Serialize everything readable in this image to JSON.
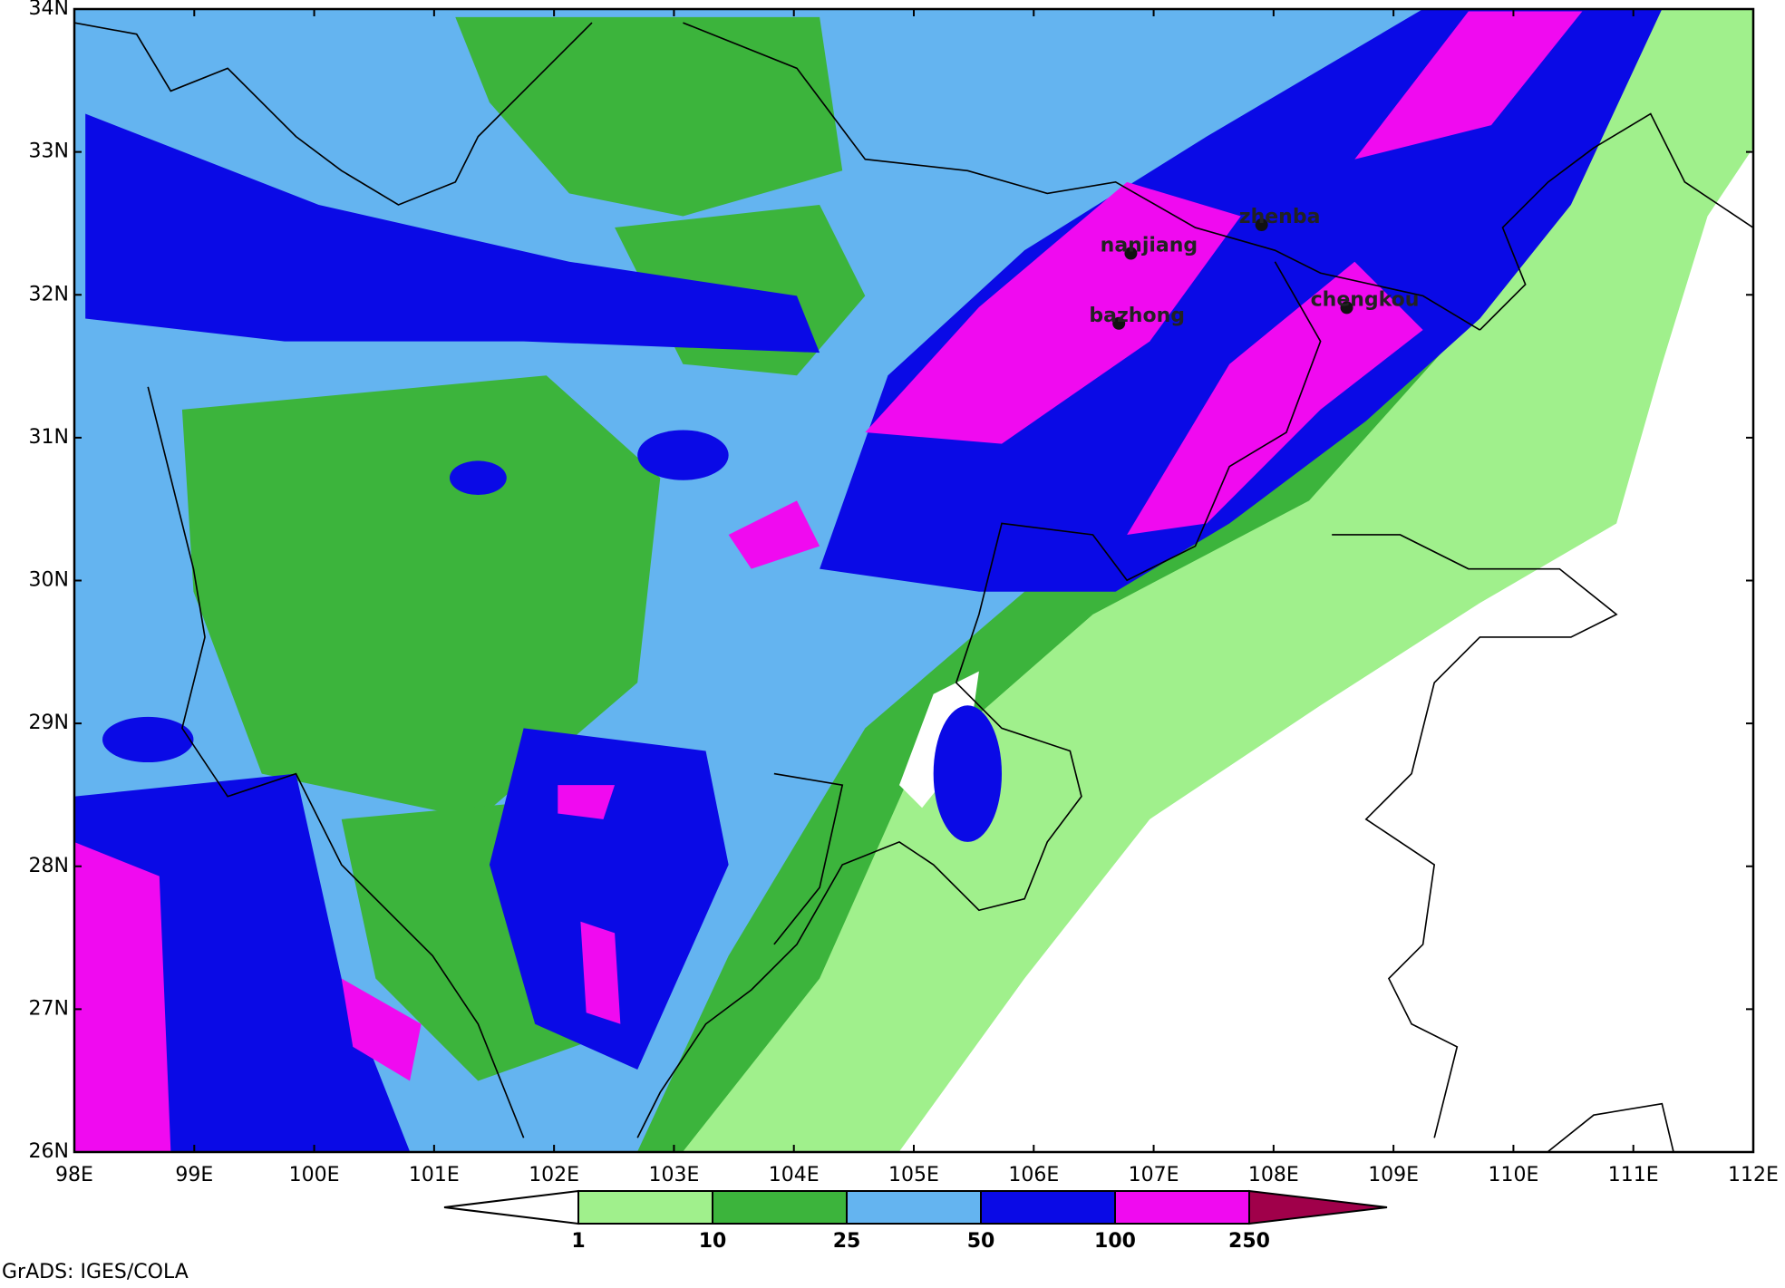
{
  "map": {
    "xticks": [
      {
        "value": 98,
        "label": "98E"
      },
      {
        "value": 99,
        "label": "99E"
      },
      {
        "value": 100,
        "label": "100E"
      },
      {
        "value": 101,
        "label": "101E"
      },
      {
        "value": 102,
        "label": "102E"
      },
      {
        "value": 103,
        "label": "103E"
      },
      {
        "value": 104,
        "label": "104E"
      },
      {
        "value": 105,
        "label": "105E"
      },
      {
        "value": 106,
        "label": "106E"
      },
      {
        "value": 107,
        "label": "107E"
      },
      {
        "value": 108,
        "label": "108E"
      },
      {
        "value": 109,
        "label": "109E"
      },
      {
        "value": 110,
        "label": "110E"
      },
      {
        "value": 111,
        "label": "111E"
      },
      {
        "value": 112,
        "label": "112E"
      }
    ],
    "yticks": [
      {
        "value": 26,
        "label": "26N"
      },
      {
        "value": 27,
        "label": "27N"
      },
      {
        "value": 28,
        "label": "28N"
      },
      {
        "value": 29,
        "label": "29N"
      },
      {
        "value": 30,
        "label": "30N"
      },
      {
        "value": 31,
        "label": "31N"
      },
      {
        "value": 32,
        "label": "32N"
      },
      {
        "value": 33,
        "label": "33N"
      },
      {
        "value": 34,
        "label": "34N"
      }
    ],
    "xlim": [
      98,
      112
    ],
    "ylim": [
      26,
      34
    ],
    "cities": [
      {
        "name": "zhenba",
        "lon": 107.9,
        "lat": 32.49
      },
      {
        "name": "nanjiang",
        "lon": 106.81,
        "lat": 32.29
      },
      {
        "name": "bazhong",
        "lon": 106.71,
        "lat": 31.8
      },
      {
        "name": "chengkou",
        "lon": 108.61,
        "lat": 31.91
      }
    ]
  },
  "colorbar": {
    "levels": [
      1,
      10,
      25,
      50,
      100,
      250
    ],
    "colors": [
      "#ffffff",
      "#a0f08c",
      "#3cb43c",
      "#64b4f0",
      "#0a0ae6",
      "#f00af0",
      "#a0004a"
    ]
  },
  "credit": "GrADS: IGES/COLA"
}
